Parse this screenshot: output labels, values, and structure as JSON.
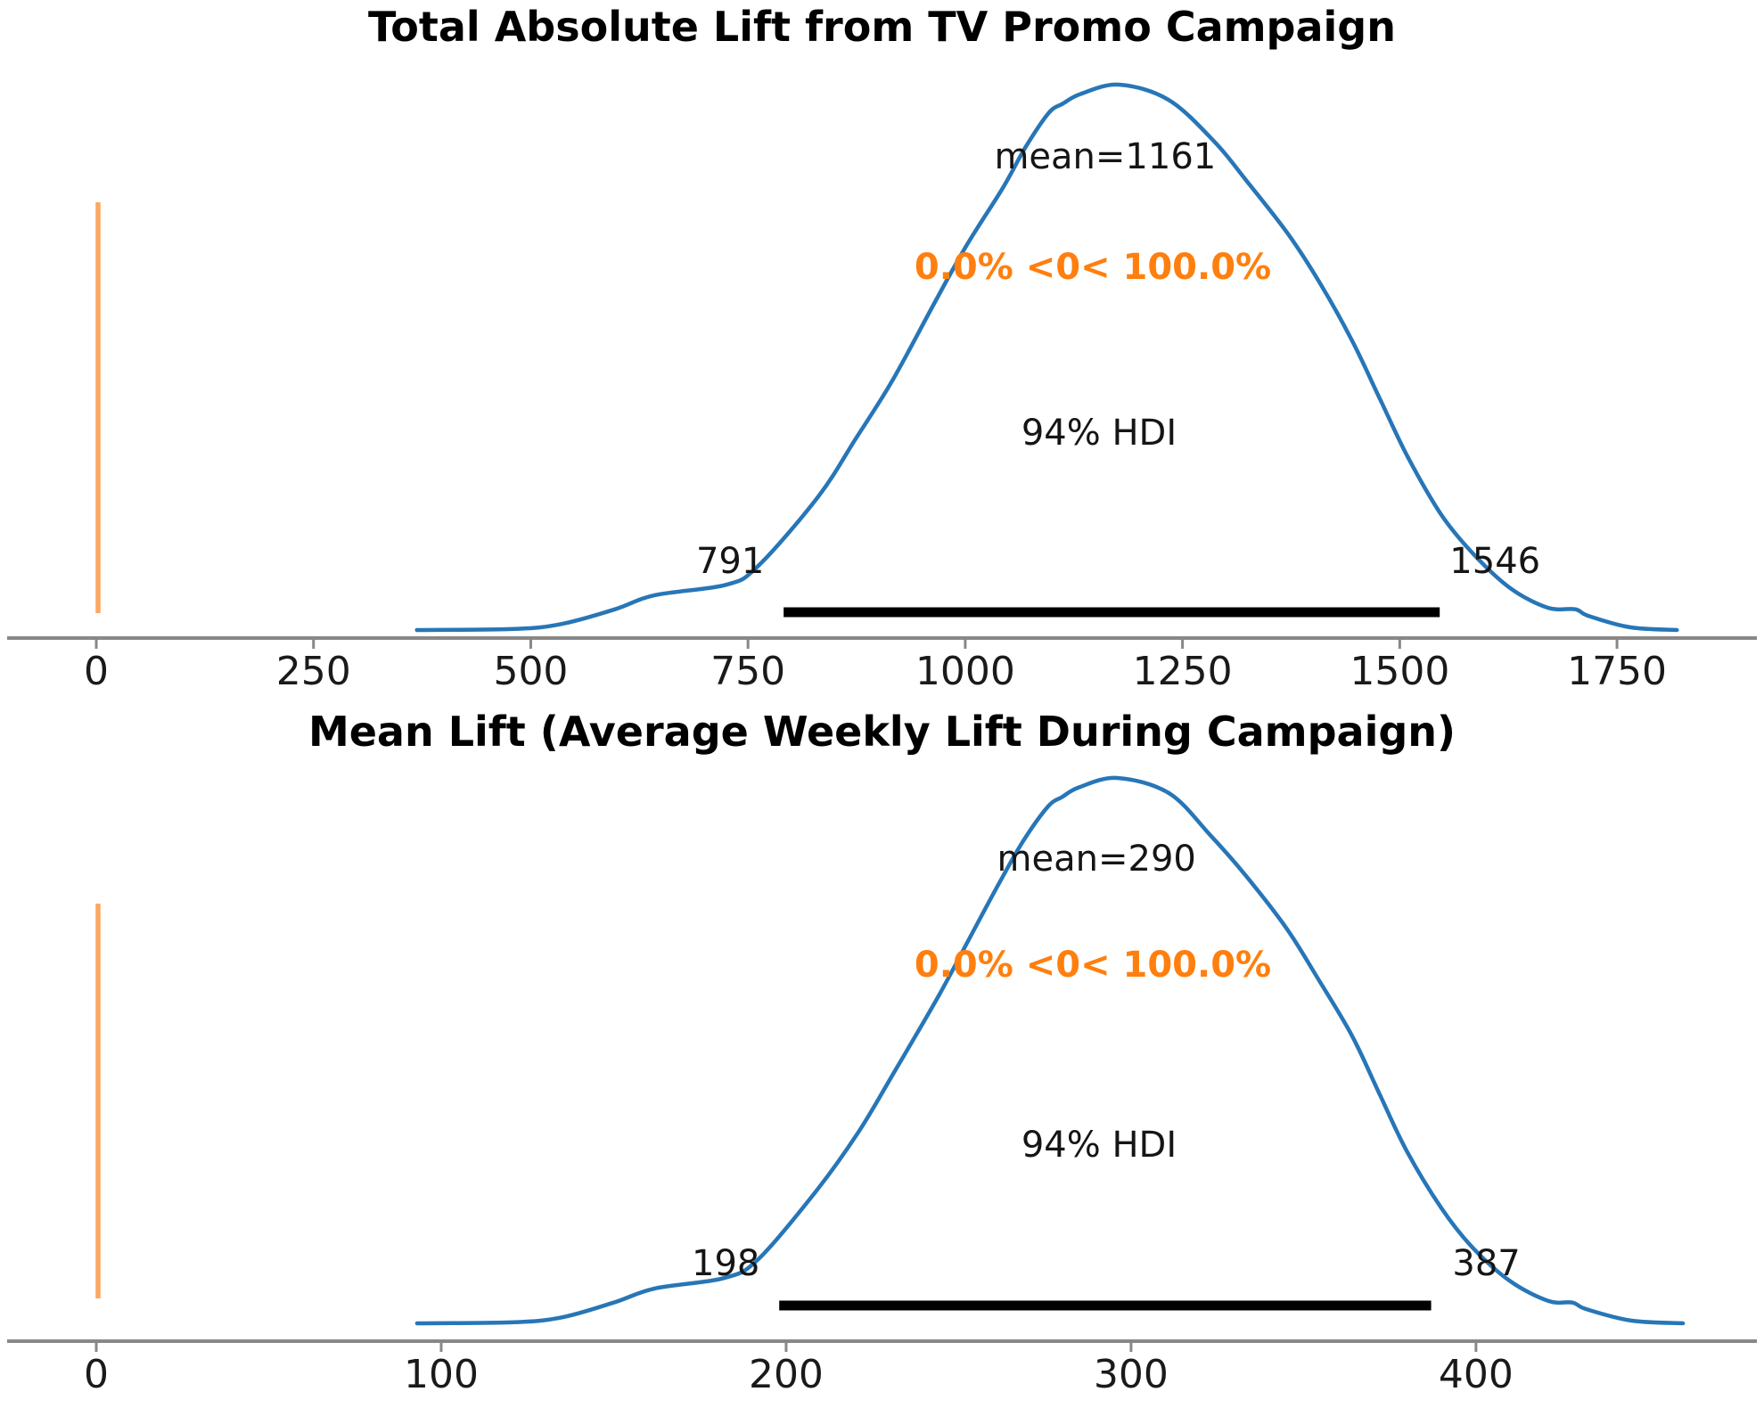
{
  "figure": {
    "background": "#ffffff",
    "curve_color": "#2776b7",
    "ref_line_color": "#fca861",
    "ref_text_color": "#ff7f0e",
    "hdi_bar_color": "#000000",
    "axis_color": "#888888"
  },
  "chart_data": [
    {
      "type": "area",
      "kind": "posterior-kde",
      "title": "Total Absolute Lift from TV Promo Campaign",
      "mean": 1161,
      "mean_label": "mean=1161",
      "ref_val": 0,
      "ref_val_label": "0.0% <0< 100.0%",
      "hdi_prob_label": "94% HDI",
      "hdi_low": 791,
      "hdi_high": 1546,
      "hdi_low_label": "791",
      "hdi_high_label": "1546",
      "xticks": [
        0,
        250,
        500,
        750,
        1000,
        1250,
        1500,
        1750
      ],
      "xlim": [
        -102,
        1911
      ],
      "grid": false,
      "legend_position": "none",
      "density": [
        [
          369,
          0
        ],
        [
          481,
          0.002
        ],
        [
          535,
          0.011
        ],
        [
          597,
          0.038
        ],
        [
          643,
          0.064
        ],
        [
          725,
          0.083
        ],
        [
          762,
          0.118
        ],
        [
          831,
          0.245
        ],
        [
          874,
          0.351
        ],
        [
          916,
          0.457
        ],
        [
          964,
          0.598
        ],
        [
          1001,
          0.704
        ],
        [
          1043,
          0.81
        ],
        [
          1070,
          0.887
        ],
        [
          1096,
          0.948
        ],
        [
          1112,
          0.965
        ],
        [
          1133,
          0.983
        ],
        [
          1177,
          1
        ],
        [
          1234,
          0.972
        ],
        [
          1287,
          0.895
        ],
        [
          1324,
          0.823
        ],
        [
          1372,
          0.725
        ],
        [
          1409,
          0.634
        ],
        [
          1446,
          0.528
        ],
        [
          1478,
          0.421
        ],
        [
          1510,
          0.315
        ],
        [
          1548,
          0.211
        ],
        [
          1585,
          0.139
        ],
        [
          1627,
          0.077
        ],
        [
          1670,
          0.041
        ],
        [
          1702,
          0.038
        ],
        [
          1717,
          0.026
        ],
        [
          1765,
          0.005
        ],
        [
          1819,
          0
        ]
      ]
    },
    {
      "type": "area",
      "kind": "posterior-kde",
      "title": "Mean Lift (Average Weekly Lift During Campaign)",
      "mean": 290,
      "mean_label": "mean=290",
      "ref_val": 0,
      "ref_val_label": "0.0% <0< 100.0%",
      "hdi_prob_label": "94% HDI",
      "hdi_low": 198,
      "hdi_high": 387,
      "hdi_low_label": "198",
      "hdi_high_label": "387",
      "xticks": [
        0,
        100,
        200,
        300,
        400
      ],
      "xlim": [
        -26,
        482
      ],
      "grid": false,
      "legend_position": "none",
      "density": [
        [
          93,
          0
        ],
        [
          121,
          0.002
        ],
        [
          135,
          0.011
        ],
        [
          150,
          0.038
        ],
        [
          162,
          0.064
        ],
        [
          182,
          0.083
        ],
        [
          192,
          0.118
        ],
        [
          209,
          0.245
        ],
        [
          221,
          0.351
        ],
        [
          231,
          0.457
        ],
        [
          244,
          0.598
        ],
        [
          253,
          0.704
        ],
        [
          262,
          0.81
        ],
        [
          269,
          0.887
        ],
        [
          276,
          0.948
        ],
        [
          280,
          0.965
        ],
        [
          285,
          0.983
        ],
        [
          296,
          1
        ],
        [
          311,
          0.972
        ],
        [
          323,
          0.895
        ],
        [
          333,
          0.823
        ],
        [
          345,
          0.725
        ],
        [
          354,
          0.634
        ],
        [
          364,
          0.528
        ],
        [
          372,
          0.421
        ],
        [
          380,
          0.315
        ],
        [
          390,
          0.211
        ],
        [
          399,
          0.139
        ],
        [
          410,
          0.077
        ],
        [
          421,
          0.041
        ],
        [
          428,
          0.038
        ],
        [
          432,
          0.026
        ],
        [
          445,
          0.005
        ],
        [
          460,
          0
        ]
      ]
    }
  ]
}
